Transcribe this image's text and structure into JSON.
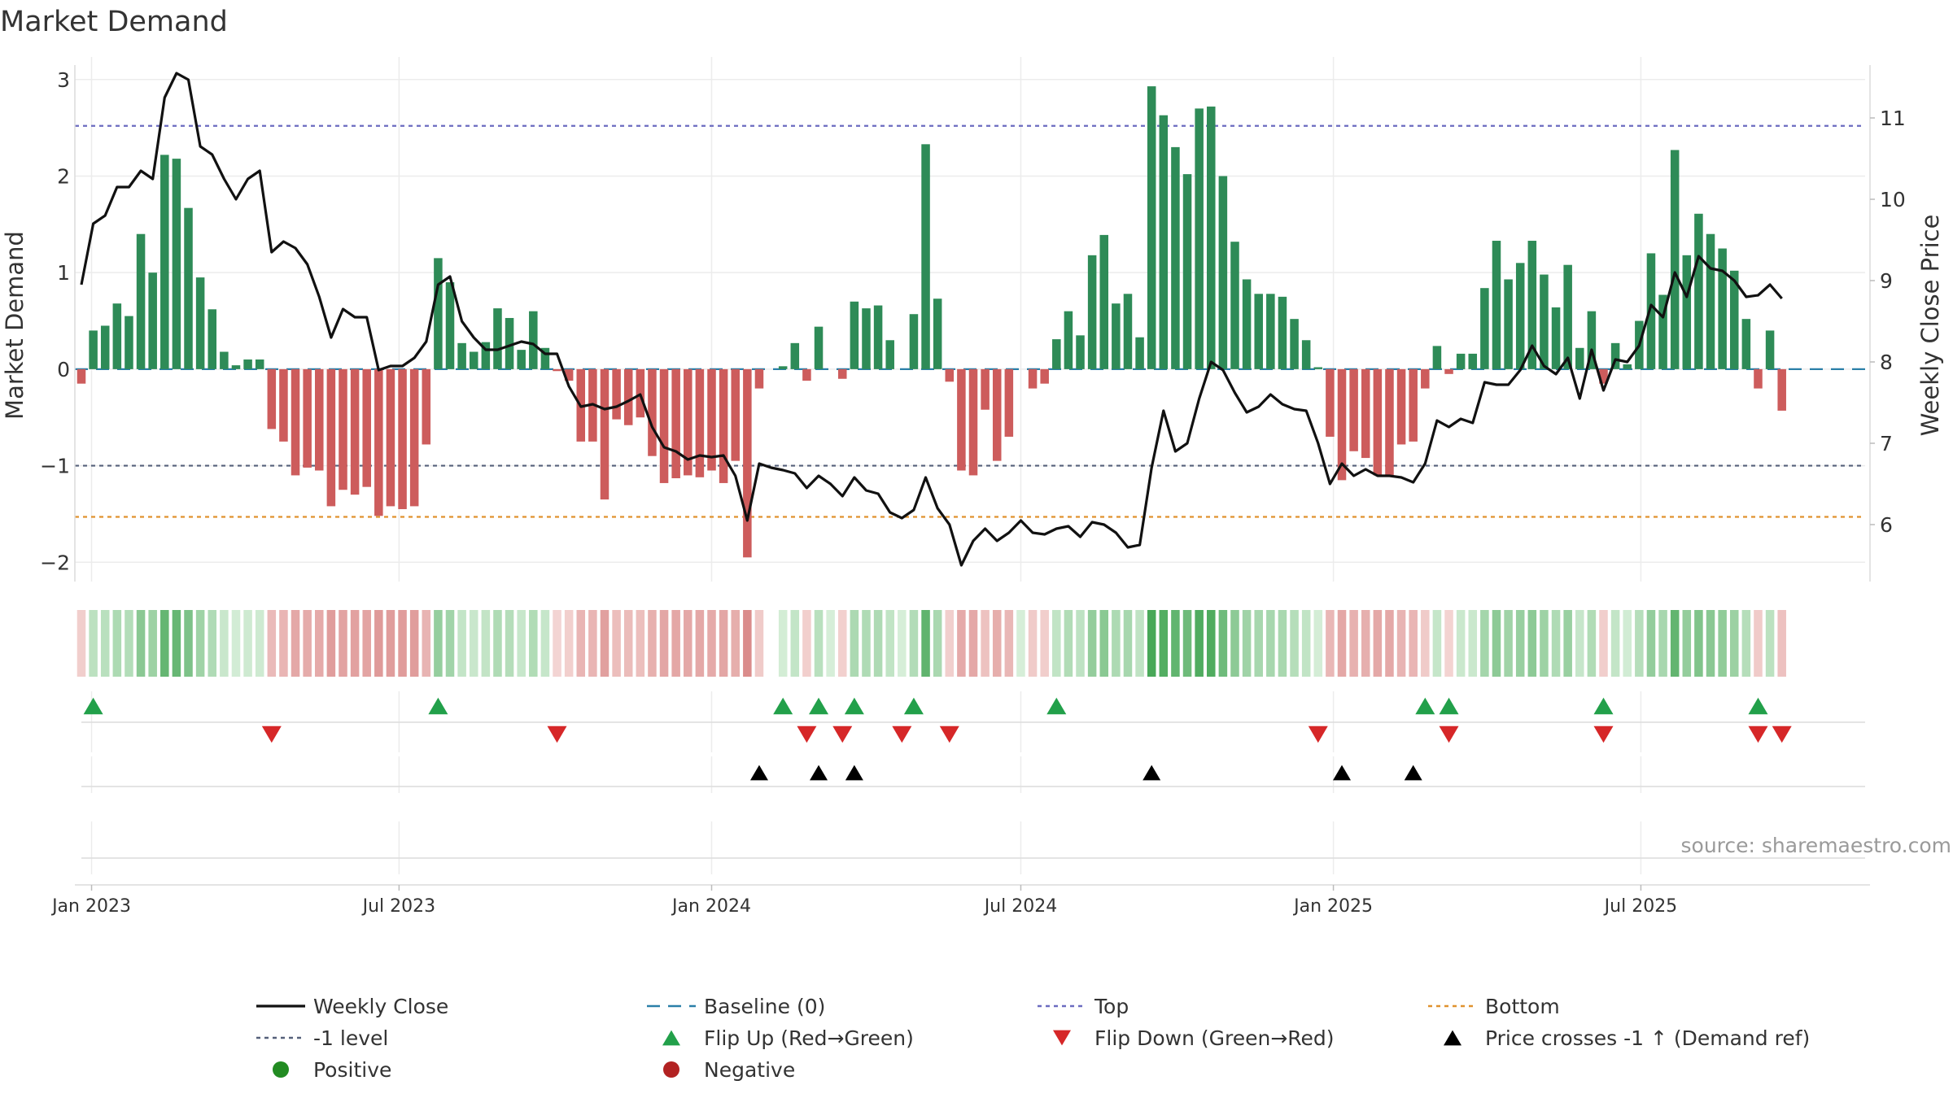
{
  "chart_data": {
    "type": "bar",
    "title": "Market Demand",
    "ylabel_left": "Market Demand",
    "ylabel_right": "Weekly Close Price",
    "source": "source: sharemaestro.com",
    "ylim_left": [
      -2.2,
      3.15
    ],
    "ylim_right": [
      5.3,
      11.65
    ],
    "yticks_left": [
      {
        "v": 3,
        "label": "3"
      },
      {
        "v": 2,
        "label": "2"
      },
      {
        "v": 1,
        "label": "1"
      },
      {
        "v": 0,
        "label": "0"
      },
      {
        "v": -1,
        "label": "−1"
      },
      {
        "v": -2,
        "label": "−2"
      }
    ],
    "yticks_right": [
      {
        "v": 11,
        "label": "11"
      },
      {
        "v": 10,
        "label": "10"
      },
      {
        "v": 9,
        "label": "9"
      },
      {
        "v": 8,
        "label": "8"
      },
      {
        "v": 7,
        "label": "7"
      },
      {
        "v": 6,
        "label": "6"
      }
    ],
    "x_start": "2022-12-26",
    "x_end": "2025-11-10",
    "xticks": [
      {
        "date": "2023-01-01",
        "label": "Jan 2023"
      },
      {
        "date": "2023-07-01",
        "label": "Jul 2023"
      },
      {
        "date": "2024-01-01",
        "label": "Jan 2024"
      },
      {
        "date": "2024-07-01",
        "label": "Jul 2024"
      },
      {
        "date": "2025-01-01",
        "label": "Jan 2025"
      },
      {
        "date": "2025-07-01",
        "label": "Jul 2025"
      }
    ],
    "reference_lines": [
      {
        "name": "Top",
        "value": 2.52,
        "color": "#6b6bc0"
      },
      {
        "name": "-1 level",
        "value": -1,
        "color": "#55607a"
      },
      {
        "name": "Bottom",
        "value": -1.53,
        "color": "#e0922e"
      },
      {
        "name": "Baseline (0)",
        "value": 0,
        "color": "#2a7fa8"
      }
    ],
    "colors": {
      "positive": "#2e8b57",
      "negative": "#cd5c5c",
      "price": "#111111",
      "flip_up": "#22a04a",
      "flip_down": "#d62728",
      "cross": "#000000",
      "legend_positive": "#228b22",
      "legend_negative": "#b22222"
    },
    "weeks": [
      {
        "i": 0,
        "demand": -0.15,
        "close": 8.95
      },
      {
        "i": 1,
        "demand": 0.4,
        "close": 9.7
      },
      {
        "i": 2,
        "demand": 0.45,
        "close": 9.8
      },
      {
        "i": 3,
        "demand": 0.68,
        "close": 10.15
      },
      {
        "i": 4,
        "demand": 0.55,
        "close": 10.15
      },
      {
        "i": 5,
        "demand": 1.4,
        "close": 10.35
      },
      {
        "i": 6,
        "demand": 1.0,
        "close": 10.25
      },
      {
        "i": 7,
        "demand": 2.22,
        "close": 11.25
      },
      {
        "i": 8,
        "demand": 2.18,
        "close": 11.55
      },
      {
        "i": 9,
        "demand": 1.67,
        "close": 11.47
      },
      {
        "i": 10,
        "demand": 0.95,
        "close": 10.65
      },
      {
        "i": 11,
        "demand": 0.62,
        "close": 10.55
      },
      {
        "i": 12,
        "demand": 0.18,
        "close": 10.25
      },
      {
        "i": 13,
        "demand": 0.04,
        "close": 10.0
      },
      {
        "i": 14,
        "demand": 0.1,
        "close": 10.25
      },
      {
        "i": 15,
        "demand": 0.1,
        "close": 10.35
      },
      {
        "i": 16,
        "demand": -0.62,
        "close": 9.35
      },
      {
        "i": 17,
        "demand": -0.75,
        "close": 9.48
      },
      {
        "i": 18,
        "demand": -1.1,
        "close": 9.4
      },
      {
        "i": 19,
        "demand": -1.02,
        "close": 9.2
      },
      {
        "i": 20,
        "demand": -1.05,
        "close": 8.8
      },
      {
        "i": 21,
        "demand": -1.42,
        "close": 8.3
      },
      {
        "i": 22,
        "demand": -1.25,
        "close": 8.65
      },
      {
        "i": 23,
        "demand": -1.3,
        "close": 8.55
      },
      {
        "i": 24,
        "demand": -1.22,
        "close": 8.55
      },
      {
        "i": 25,
        "demand": -1.52,
        "close": 7.9
      },
      {
        "i": 26,
        "demand": -1.42,
        "close": 7.95
      },
      {
        "i": 27,
        "demand": -1.45,
        "close": 7.95
      },
      {
        "i": 28,
        "demand": -1.42,
        "close": 8.05
      },
      {
        "i": 29,
        "demand": -0.78,
        "close": 8.25
      },
      {
        "i": 30,
        "demand": 1.15,
        "close": 8.95
      },
      {
        "i": 31,
        "demand": 0.9,
        "close": 9.05
      },
      {
        "i": 32,
        "demand": 0.27,
        "close": 8.5
      },
      {
        "i": 33,
        "demand": 0.18,
        "close": 8.3
      },
      {
        "i": 34,
        "demand": 0.28,
        "close": 8.15
      },
      {
        "i": 35,
        "demand": 0.63,
        "close": 8.15
      },
      {
        "i": 36,
        "demand": 0.53,
        "close": 8.2
      },
      {
        "i": 37,
        "demand": 0.2,
        "close": 8.25
      },
      {
        "i": 38,
        "demand": 0.6,
        "close": 8.22
      },
      {
        "i": 39,
        "demand": 0.22,
        "close": 8.1
      },
      {
        "i": 40,
        "demand": -0.02,
        "close": 8.1
      },
      {
        "i": 41,
        "demand": -0.12,
        "close": 7.7
      },
      {
        "i": 42,
        "demand": -0.75,
        "close": 7.45
      },
      {
        "i": 43,
        "demand": -0.75,
        "close": 7.48
      },
      {
        "i": 44,
        "demand": -1.35,
        "close": 7.42
      },
      {
        "i": 45,
        "demand": -0.52,
        "close": 7.45
      },
      {
        "i": 46,
        "demand": -0.58,
        "close": 7.52
      },
      {
        "i": 47,
        "demand": -0.5,
        "close": 7.6
      },
      {
        "i": 48,
        "demand": -0.9,
        "close": 7.2
      },
      {
        "i": 49,
        "demand": -1.18,
        "close": 6.95
      },
      {
        "i": 50,
        "demand": -1.13,
        "close": 6.9
      },
      {
        "i": 51,
        "demand": -1.1,
        "close": 6.8
      },
      {
        "i": 52,
        "demand": -1.12,
        "close": 6.85
      },
      {
        "i": 53,
        "demand": -1.05,
        "close": 6.83
      },
      {
        "i": 54,
        "demand": -1.18,
        "close": 6.85
      },
      {
        "i": 55,
        "demand": -0.95,
        "close": 6.6
      },
      {
        "i": 56,
        "demand": -1.95,
        "close": 6.05
      },
      {
        "i": 57,
        "demand": -0.2,
        "close": 6.75
      },
      {
        "i": 58,
        "demand": null,
        "close": 6.7
      },
      {
        "i": 59,
        "demand": 0.03,
        "close": 6.67
      },
      {
        "i": 60,
        "demand": 0.27,
        "close": 6.63
      },
      {
        "i": 61,
        "demand": -0.12,
        "close": 6.45
      },
      {
        "i": 62,
        "demand": 0.44,
        "close": 6.6
      },
      {
        "i": 63,
        "demand": 0.0,
        "close": 6.5
      },
      {
        "i": 64,
        "demand": -0.1,
        "close": 6.35
      },
      {
        "i": 65,
        "demand": 0.7,
        "close": 6.58
      },
      {
        "i": 66,
        "demand": 0.63,
        "close": 6.42
      },
      {
        "i": 67,
        "demand": 0.66,
        "close": 6.38
      },
      {
        "i": 68,
        "demand": 0.3,
        "close": 6.15
      },
      {
        "i": 69,
        "demand": 0.0,
        "close": 6.08
      },
      {
        "i": 70,
        "demand": 0.57,
        "close": 6.18
      },
      {
        "i": 71,
        "demand": 2.33,
        "close": 6.58
      },
      {
        "i": 72,
        "demand": 0.73,
        "close": 6.2
      },
      {
        "i": 73,
        "demand": -0.13,
        "close": 6.0
      },
      {
        "i": 74,
        "demand": -1.05,
        "close": 5.5
      },
      {
        "i": 75,
        "demand": -1.1,
        "close": 5.8
      },
      {
        "i": 76,
        "demand": -0.42,
        "close": 5.95
      },
      {
        "i": 77,
        "demand": -0.95,
        "close": 5.8
      },
      {
        "i": 78,
        "demand": -0.7,
        "close": 5.9
      },
      {
        "i": 79,
        "demand": 0.0,
        "close": 6.05
      },
      {
        "i": 80,
        "demand": -0.2,
        "close": 5.9
      },
      {
        "i": 81,
        "demand": -0.15,
        "close": 5.88
      },
      {
        "i": 82,
        "demand": 0.31,
        "close": 5.95
      },
      {
        "i": 83,
        "demand": 0.6,
        "close": 5.98
      },
      {
        "i": 84,
        "demand": 0.35,
        "close": 5.85
      },
      {
        "i": 85,
        "demand": 1.18,
        "close": 6.03
      },
      {
        "i": 86,
        "demand": 1.39,
        "close": 6.0
      },
      {
        "i": 87,
        "demand": 0.68,
        "close": 5.9
      },
      {
        "i": 88,
        "demand": 0.78,
        "close": 5.72
      },
      {
        "i": 89,
        "demand": 0.33,
        "close": 5.75
      },
      {
        "i": 90,
        "demand": 2.93,
        "close": 6.7
      },
      {
        "i": 91,
        "demand": 2.63,
        "close": 7.4
      },
      {
        "i": 92,
        "demand": 2.3,
        "close": 6.9
      },
      {
        "i": 93,
        "demand": 2.02,
        "close": 7.0
      },
      {
        "i": 94,
        "demand": 2.7,
        "close": 7.55
      },
      {
        "i": 95,
        "demand": 2.72,
        "close": 8.0
      },
      {
        "i": 96,
        "demand": 2.0,
        "close": 7.9
      },
      {
        "i": 97,
        "demand": 1.32,
        "close": 7.62
      },
      {
        "i": 98,
        "demand": 0.93,
        "close": 7.38
      },
      {
        "i": 99,
        "demand": 0.78,
        "close": 7.45
      },
      {
        "i": 100,
        "demand": 0.78,
        "close": 7.6
      },
      {
        "i": 101,
        "demand": 0.75,
        "close": 7.48
      },
      {
        "i": 102,
        "demand": 0.52,
        "close": 7.42
      },
      {
        "i": 103,
        "demand": 0.3,
        "close": 7.4
      },
      {
        "i": 104,
        "demand": 0.02,
        "close": 7.0
      },
      {
        "i": 105,
        "demand": -0.7,
        "close": 6.5
      },
      {
        "i": 106,
        "demand": -1.15,
        "close": 6.75
      },
      {
        "i": 107,
        "demand": -0.85,
        "close": 6.6
      },
      {
        "i": 108,
        "demand": -0.92,
        "close": 6.68
      },
      {
        "i": 109,
        "demand": -1.1,
        "close": 6.6
      },
      {
        "i": 110,
        "demand": -1.1,
        "close": 6.6
      },
      {
        "i": 111,
        "demand": -0.78,
        "close": 6.58
      },
      {
        "i": 112,
        "demand": -0.75,
        "close": 6.52
      },
      {
        "i": 113,
        "demand": -0.2,
        "close": 6.75
      },
      {
        "i": 114,
        "demand": 0.24,
        "close": 7.28
      },
      {
        "i": 115,
        "demand": -0.05,
        "close": 7.2
      },
      {
        "i": 116,
        "demand": 0.16,
        "close": 7.3
      },
      {
        "i": 117,
        "demand": 0.16,
        "close": 7.25
      },
      {
        "i": 118,
        "demand": 0.84,
        "close": 7.75
      },
      {
        "i": 119,
        "demand": 1.33,
        "close": 7.72
      },
      {
        "i": 120,
        "demand": 0.93,
        "close": 7.72
      },
      {
        "i": 121,
        "demand": 1.1,
        "close": 7.9
      },
      {
        "i": 122,
        "demand": 1.33,
        "close": 8.2
      },
      {
        "i": 123,
        "demand": 0.98,
        "close": 7.95
      },
      {
        "i": 124,
        "demand": 0.64,
        "close": 7.85
      },
      {
        "i": 125,
        "demand": 1.08,
        "close": 8.05
      },
      {
        "i": 126,
        "demand": 0.22,
        "close": 7.55
      },
      {
        "i": 127,
        "demand": 0.6,
        "close": 8.15
      },
      {
        "i": 128,
        "demand": -0.15,
        "close": 7.65
      },
      {
        "i": 129,
        "demand": 0.27,
        "close": 8.03
      },
      {
        "i": 130,
        "demand": 0.05,
        "close": 8.0
      },
      {
        "i": 131,
        "demand": 0.5,
        "close": 8.2
      },
      {
        "i": 132,
        "demand": 1.2,
        "close": 8.7
      },
      {
        "i": 133,
        "demand": 0.77,
        "close": 8.55
      },
      {
        "i": 134,
        "demand": 2.27,
        "close": 9.1
      },
      {
        "i": 135,
        "demand": 1.18,
        "close": 8.8
      },
      {
        "i": 136,
        "demand": 1.61,
        "close": 9.3
      },
      {
        "i": 137,
        "demand": 1.4,
        "close": 9.15
      },
      {
        "i": 138,
        "demand": 1.25,
        "close": 9.12
      },
      {
        "i": 139,
        "demand": 1.02,
        "close": 9.0
      },
      {
        "i": 140,
        "demand": 0.52,
        "close": 8.8
      },
      {
        "i": 141,
        "demand": -0.2,
        "close": 8.82
      },
      {
        "i": 142,
        "demand": 0.4,
        "close": 8.95
      },
      {
        "i": 143,
        "demand": -0.43,
        "close": 8.78
      }
    ],
    "flip_up_weeks": [
      1,
      30,
      59,
      62,
      65,
      70,
      82,
      113,
      115,
      128,
      141
    ],
    "flip_down_weeks": [
      16,
      40,
      61,
      64,
      69,
      73,
      104,
      115,
      128,
      141,
      143
    ],
    "price_cross_weeks": [
      57,
      62,
      65,
      90,
      106,
      112
    ],
    "legend": [
      {
        "label": "Weekly Close",
        "marker": "line-solid",
        "color": "#111111"
      },
      {
        "label": "Baseline (0)",
        "marker": "line-dash",
        "color": "#2a7fa8"
      },
      {
        "label": "Top",
        "marker": "line-dot",
        "color": "#6b6bc0"
      },
      {
        "label": "Bottom",
        "marker": "line-dot",
        "color": "#e0922e"
      },
      {
        "label": "-1 level",
        "marker": "line-dot",
        "color": "#55607a"
      },
      {
        "label": "Flip Up (Red→Green)",
        "marker": "triangle-up",
        "color": "#22a04a"
      },
      {
        "label": "Flip Down (Green→Red)",
        "marker": "triangle-down",
        "color": "#d62728"
      },
      {
        "label": "Price crosses -1 ↑ (Demand ref)",
        "marker": "triangle-up",
        "color": "#000000"
      },
      {
        "label": "Positive",
        "marker": "circle",
        "color": "#228b22"
      },
      {
        "label": "Negative",
        "marker": "circle",
        "color": "#b22222"
      }
    ]
  }
}
